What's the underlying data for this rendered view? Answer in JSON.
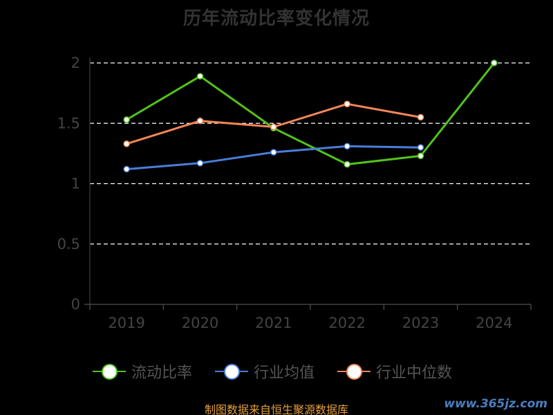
{
  "title": "历年流动比率变化情况",
  "source_note": "制图数据来自恒生聚源数据库",
  "watermark": "www.365jz.com",
  "chart_data": {
    "type": "line",
    "title": "历年流动比率变化情况",
    "categories": [
      "2019",
      "2020",
      "2021",
      "2022",
      "2023",
      "2024"
    ],
    "ylim": [
      0,
      2
    ],
    "yticks": [
      0,
      0.5,
      1,
      1.5,
      2
    ],
    "ytick_labels": [
      "0",
      "0.5",
      "1",
      "1.5",
      "2"
    ],
    "grid": true,
    "legend_position": "bottom",
    "series": [
      {
        "name": "流动比率",
        "color": "#52c41a",
        "values": [
          1.53,
          1.89,
          1.46,
          1.16,
          1.23,
          2.0
        ]
      },
      {
        "name": "行业均值",
        "color": "#4a7fd9",
        "values": [
          1.12,
          1.17,
          1.26,
          1.31,
          1.3,
          null
        ]
      },
      {
        "name": "行业中位数",
        "color": "#f4875a",
        "values": [
          1.33,
          1.52,
          1.47,
          1.66,
          1.55,
          null
        ]
      }
    ]
  }
}
